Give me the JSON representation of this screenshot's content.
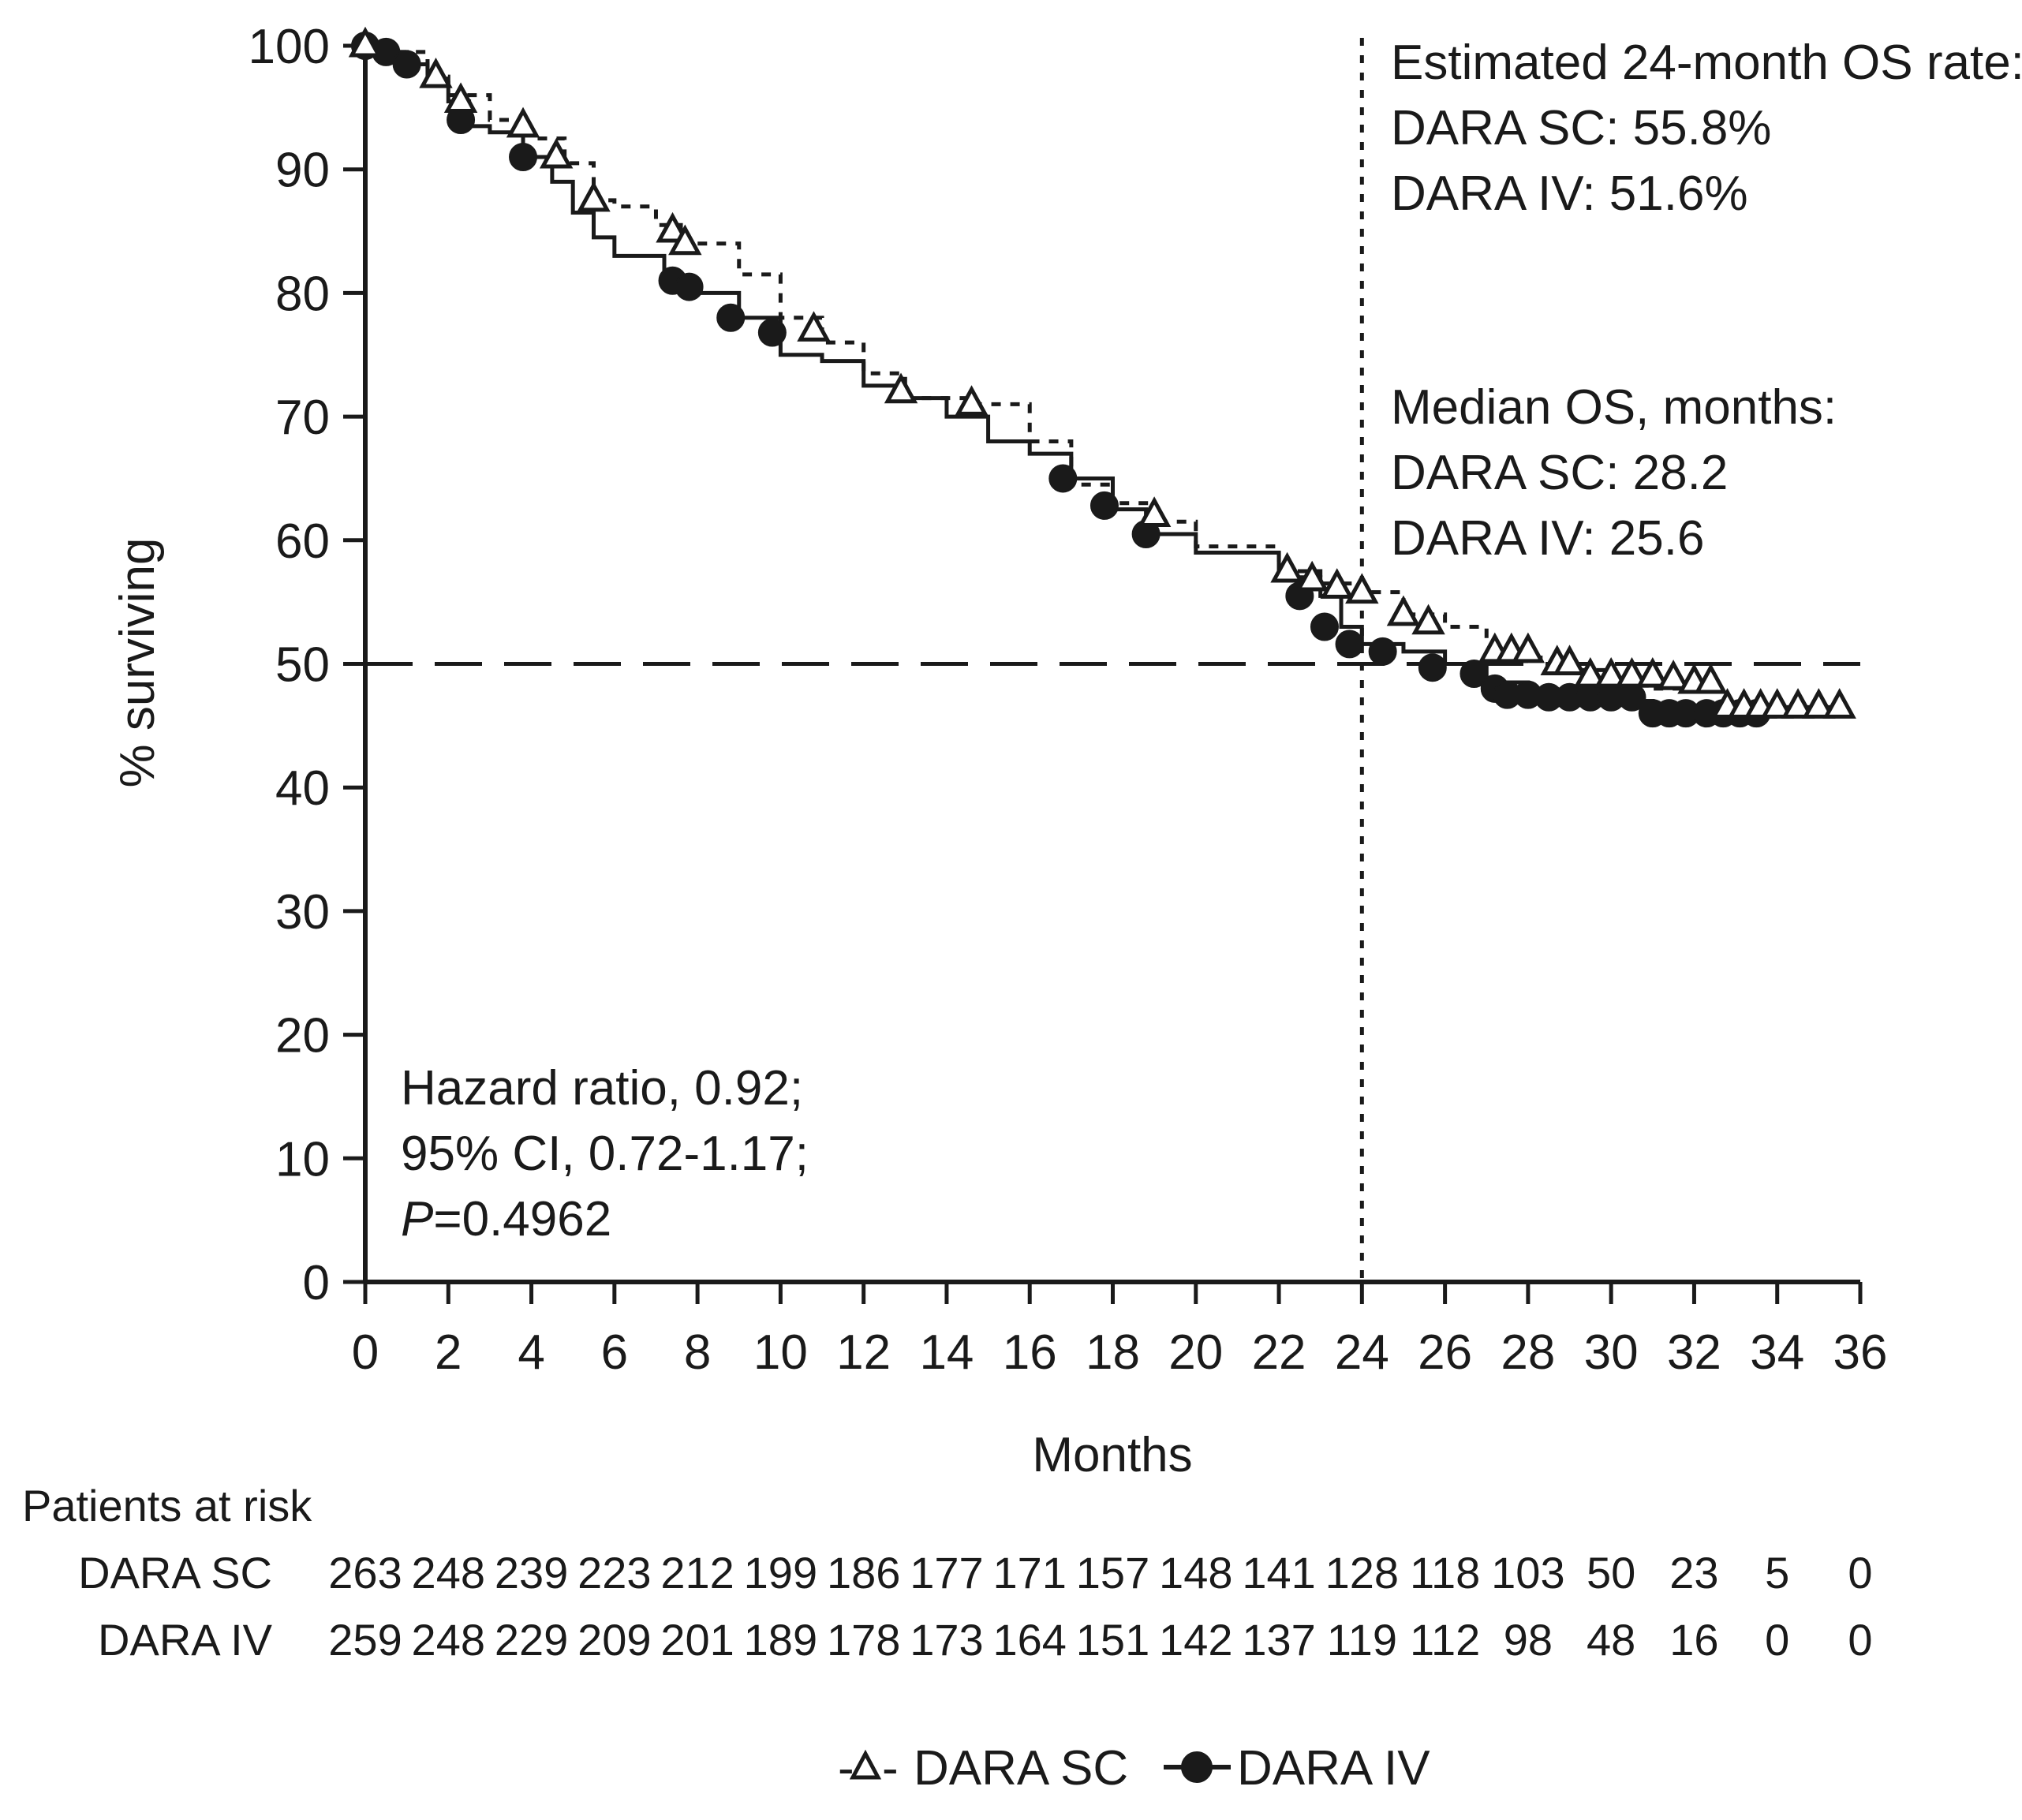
{
  "chart_data": {
    "type": "line",
    "subtype": "kaplan-meier",
    "title": "",
    "xlabel": "Months",
    "ylabel": "% surviving",
    "xlim": [
      0,
      36
    ],
    "ylim": [
      0,
      100
    ],
    "x_ticks": [
      "0",
      "2",
      "4",
      "6",
      "8",
      "10",
      "12",
      "14",
      "16",
      "18",
      "20",
      "22",
      "24",
      "26",
      "28",
      "30",
      "32",
      "34",
      "36"
    ],
    "y_ticks": [
      "0",
      "10",
      "20",
      "30",
      "40",
      "50",
      "60",
      "70",
      "80",
      "90",
      "100"
    ],
    "reference_lines": {
      "horizontal_y": 50,
      "vertical_x": 24
    },
    "series": [
      {
        "name": "DARA SC",
        "marker": "open-triangle",
        "line_style": "dotted",
        "points": [
          [
            0,
            100
          ],
          [
            0.3,
            99.5
          ],
          [
            1.5,
            97.5
          ],
          [
            2,
            96
          ],
          [
            3,
            94
          ],
          [
            4,
            92.5
          ],
          [
            4.8,
            90.5
          ],
          [
            5.5,
            87.5
          ],
          [
            6,
            87
          ],
          [
            7,
            85.5
          ],
          [
            7.6,
            84
          ],
          [
            9,
            81.5
          ],
          [
            10,
            78
          ],
          [
            11,
            76
          ],
          [
            12,
            73.5
          ],
          [
            13,
            71.5
          ],
          [
            14.5,
            71
          ],
          [
            16,
            68
          ],
          [
            17,
            64.5
          ],
          [
            18,
            63
          ],
          [
            19,
            61.5
          ],
          [
            20,
            59.5
          ],
          [
            22,
            57.5
          ],
          [
            23,
            56.5
          ],
          [
            24,
            55.8
          ],
          [
            25,
            54
          ],
          [
            26,
            53
          ],
          [
            27,
            51.5
          ],
          [
            28,
            50.5
          ],
          [
            29,
            49.5
          ],
          [
            30,
            48.5
          ],
          [
            31,
            48
          ],
          [
            32.3,
            48
          ],
          [
            32.5,
            46.5
          ],
          [
            35.5,
            46
          ]
        ],
        "markers": [
          [
            0,
            100
          ],
          [
            1.7,
            97.5
          ],
          [
            2.3,
            95.5
          ],
          [
            3.8,
            93.5
          ],
          [
            4.6,
            91
          ],
          [
            5.5,
            87.5
          ],
          [
            7.4,
            85
          ],
          [
            7.7,
            84
          ],
          [
            10.8,
            77
          ],
          [
            12.9,
            72
          ],
          [
            14.6,
            71
          ],
          [
            19,
            62
          ],
          [
            22.2,
            57.5
          ],
          [
            22.8,
            56.8
          ],
          [
            23.4,
            56.2
          ],
          [
            24,
            55.8
          ],
          [
            25,
            54
          ],
          [
            25.6,
            53.3
          ],
          [
            27.2,
            51
          ],
          [
            27.6,
            51
          ],
          [
            28.0,
            51
          ],
          [
            28.7,
            50
          ],
          [
            29,
            50
          ],
          [
            29.5,
            49
          ],
          [
            30,
            49
          ],
          [
            30.5,
            49
          ],
          [
            31,
            49
          ],
          [
            31.5,
            48.8
          ],
          [
            32,
            48.5
          ],
          [
            32.4,
            48.5
          ],
          [
            32.8,
            46.5
          ],
          [
            33.2,
            46.5
          ],
          [
            33.6,
            46.5
          ],
          [
            34,
            46.5
          ],
          [
            34.5,
            46.5
          ],
          [
            35.0,
            46.5
          ],
          [
            35.5,
            46.5
          ]
        ]
      },
      {
        "name": "DARA IV",
        "marker": "filled-circle",
        "line_style": "solid",
        "points": [
          [
            0,
            100
          ],
          [
            0.5,
            99.5
          ],
          [
            1,
            98.5
          ],
          [
            1.5,
            97
          ],
          [
            2,
            95.5
          ],
          [
            2.5,
            93.5
          ],
          [
            3,
            93
          ],
          [
            3.8,
            91
          ],
          [
            4.5,
            89
          ],
          [
            5,
            86.5
          ],
          [
            5.5,
            84.5
          ],
          [
            6,
            83
          ],
          [
            7.2,
            81
          ],
          [
            8,
            80
          ],
          [
            9,
            78
          ],
          [
            10,
            75
          ],
          [
            11,
            74.5
          ],
          [
            12,
            72.5
          ],
          [
            13,
            71.5
          ],
          [
            14,
            70
          ],
          [
            15,
            68
          ],
          [
            16,
            67
          ],
          [
            17,
            65
          ],
          [
            18,
            62.5
          ],
          [
            18.8,
            60.5
          ],
          [
            20,
            59
          ],
          [
            22,
            57
          ],
          [
            23,
            55.5
          ],
          [
            23.5,
            53
          ],
          [
            24,
            51.6
          ],
          [
            25,
            51
          ],
          [
            26,
            50
          ],
          [
            27,
            48.5
          ],
          [
            28,
            47.5
          ],
          [
            30,
            47
          ],
          [
            31,
            46
          ],
          [
            31.7,
            46
          ],
          [
            32,
            45.5
          ],
          [
            33.6,
            45.5
          ]
        ],
        "markers": [
          [
            0,
            100
          ],
          [
            0.5,
            99.5
          ],
          [
            1,
            98.5
          ],
          [
            2.3,
            94
          ],
          [
            3.8,
            91
          ],
          [
            7.4,
            81
          ],
          [
            7.8,
            80.5
          ],
          [
            8.8,
            78
          ],
          [
            9.8,
            76.8
          ],
          [
            16.8,
            65
          ],
          [
            17.8,
            62.8
          ],
          [
            18.8,
            60.5
          ],
          [
            22.5,
            55.5
          ],
          [
            23.1,
            53
          ],
          [
            23.7,
            51.6
          ],
          [
            24.5,
            51
          ],
          [
            25.7,
            49.7
          ],
          [
            26.7,
            49.2
          ],
          [
            27.2,
            48
          ],
          [
            27.5,
            47.5
          ],
          [
            28,
            47.5
          ],
          [
            28.5,
            47.3
          ],
          [
            29,
            47.3
          ],
          [
            29.5,
            47.3
          ],
          [
            30,
            47.3
          ],
          [
            30.5,
            47.3
          ],
          [
            31,
            46
          ],
          [
            31.4,
            46
          ],
          [
            31.8,
            46
          ],
          [
            32.3,
            46
          ],
          [
            32.7,
            46
          ],
          [
            33.1,
            46
          ],
          [
            33.5,
            46
          ]
        ]
      }
    ],
    "annotations": {
      "os_rate": [
        "Estimated 24-month OS rate:",
        "DARA SC: 55.8%",
        "DARA IV: 51.6%"
      ],
      "median_os": [
        "Median OS, months:",
        "DARA SC: 28.2",
        "DARA IV: 25.6"
      ],
      "hazard_ratio": "Hazard ratio, 0.92;",
      "ci": "95% CI, 0.72-1.17;",
      "p_label": "P",
      "p_value": "=0.4962"
    },
    "risk_table": {
      "title": "Patients at risk",
      "rows": [
        {
          "label": "DARA SC",
          "values": [
            "263",
            "248",
            "239",
            "223",
            "212",
            "199",
            "186",
            "177",
            "171",
            "157",
            "148",
            "141",
            "128",
            "118",
            "103",
            "50",
            "23",
            "5",
            "0"
          ]
        },
        {
          "label": "DARA IV",
          "values": [
            "259",
            "248",
            "229",
            "209",
            "201",
            "189",
            "178",
            "173",
            "164",
            "151",
            "142",
            "137",
            "119",
            "112",
            "98",
            "48",
            "16",
            "0",
            "0"
          ]
        }
      ]
    },
    "legend": [
      {
        "label": "DARA SC",
        "symbol": "-△-"
      },
      {
        "label": "DARA IV",
        "symbol": "—●—"
      }
    ]
  }
}
